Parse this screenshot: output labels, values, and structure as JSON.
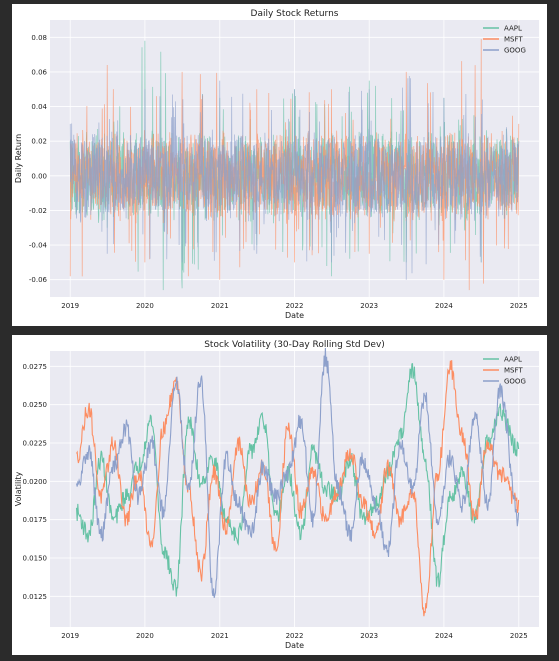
{
  "chart_data": [
    {
      "type": "line",
      "title": "Daily Stock Returns",
      "xlabel": "Date",
      "ylabel": "Daily Return",
      "xlim": [
        "2019-01-01",
        "2025-01-01"
      ],
      "ylim": [
        -0.07,
        0.09
      ],
      "x_ticks": [
        "2019",
        "2020",
        "2021",
        "2022",
        "2023",
        "2024",
        "2025"
      ],
      "y_ticks": [
        "-0.06",
        "-0.04",
        "-0.02",
        "0.00",
        "0.02",
        "0.04",
        "0.06",
        "0.08"
      ],
      "y_tick_values": [
        -0.06,
        -0.04,
        -0.02,
        0.0,
        0.02,
        0.04,
        0.06,
        0.08
      ],
      "legend_position": "top-right",
      "grid": true,
      "series": [
        {
          "name": "AAPL",
          "color": "#66c2a5",
          "x": [
            "2019-01-01",
            "2019-07-01",
            "2020-01-01",
            "2020-07-01",
            "2021-01-01",
            "2021-07-01",
            "2022-01-01",
            "2022-07-01",
            "2023-01-01",
            "2023-07-01",
            "2024-01-01",
            "2024-07-01",
            "2025-01-01"
          ],
          "values": [
            0.02,
            -0.03,
            0.078,
            -0.065,
            0.045,
            -0.04,
            0.05,
            -0.058,
            0.055,
            -0.05,
            0.045,
            -0.05,
            0.02
          ]
        },
        {
          "name": "MSFT",
          "color": "#fc8d62",
          "x": [
            "2019-01-01",
            "2019-07-01",
            "2020-01-01",
            "2020-07-01",
            "2021-01-01",
            "2021-07-01",
            "2022-01-01",
            "2022-07-01",
            "2023-01-01",
            "2023-07-01",
            "2024-01-01",
            "2024-07-01",
            "2025-01-01"
          ],
          "values": [
            -0.058,
            0.064,
            -0.05,
            0.06,
            -0.06,
            0.05,
            -0.05,
            0.05,
            -0.045,
            0.06,
            -0.06,
            0.079,
            0.03
          ]
        },
        {
          "name": "GOOG",
          "color": "#8da0cb",
          "x": [
            "2019-01-01",
            "2019-07-01",
            "2020-01-01",
            "2020-07-01",
            "2021-01-01",
            "2021-07-01",
            "2022-01-01",
            "2022-07-01",
            "2023-01-01",
            "2023-07-01",
            "2024-01-01",
            "2024-07-01",
            "2025-01-01"
          ],
          "values": [
            0.03,
            -0.045,
            0.05,
            -0.05,
            0.055,
            -0.045,
            0.05,
            -0.05,
            0.05,
            -0.06,
            0.045,
            -0.05,
            0.02
          ]
        }
      ]
    },
    {
      "type": "line",
      "title": "Stock Volatility (30-Day Rolling Std Dev)",
      "xlabel": "Date",
      "ylabel": "Volatility",
      "xlim": [
        "2019-01-01",
        "2025-01-01"
      ],
      "ylim": [
        0.0105,
        0.0285
      ],
      "x_ticks": [
        "2019",
        "2020",
        "2021",
        "2022",
        "2023",
        "2024",
        "2025"
      ],
      "y_ticks": [
        "0.0125",
        "0.0150",
        "0.0175",
        "0.0200",
        "0.0225",
        "0.0250",
        "0.0275"
      ],
      "y_tick_values": [
        0.0125,
        0.015,
        0.0175,
        0.02,
        0.0225,
        0.025,
        0.0275
      ],
      "legend_position": "top-right",
      "grid": true,
      "series": [
        {
          "name": "AAPL",
          "color": "#66c2a5",
          "x": [
            "2019-02-01",
            "2019-04-01",
            "2019-06-01",
            "2019-08-01",
            "2019-10-01",
            "2019-12-01",
            "2020-02-01",
            "2020-04-01",
            "2020-06-01",
            "2020-08-01",
            "2020-10-01",
            "2020-12-01",
            "2021-02-01",
            "2021-04-01",
            "2021-06-01",
            "2021-08-01",
            "2021-10-01",
            "2021-12-01",
            "2022-02-01",
            "2022-04-01",
            "2022-06-01",
            "2022-08-01",
            "2022-10-01",
            "2022-12-01",
            "2023-02-01",
            "2023-04-01",
            "2023-06-01",
            "2023-08-01",
            "2023-10-01",
            "2023-12-01",
            "2024-02-01",
            "2024-04-01",
            "2024-06-01",
            "2024-08-01",
            "2024-10-01",
            "2024-12-31"
          ],
          "values": [
            0.018,
            0.0165,
            0.0215,
            0.0175,
            0.019,
            0.021,
            0.024,
            0.0155,
            0.013,
            0.024,
            0.02,
            0.0215,
            0.0175,
            0.0165,
            0.022,
            0.024,
            0.0175,
            0.0205,
            0.0165,
            0.022,
            0.0195,
            0.019,
            0.0215,
            0.0175,
            0.0185,
            0.0205,
            0.023,
            0.0272,
            0.0215,
            0.0135,
            0.019,
            0.0205,
            0.0175,
            0.0225,
            0.0245,
            0.022
          ]
        },
        {
          "name": "MSFT",
          "color": "#fc8d62",
          "x": [
            "2019-02-01",
            "2019-04-01",
            "2019-06-01",
            "2019-08-01",
            "2019-10-01",
            "2019-12-01",
            "2020-02-01",
            "2020-04-01",
            "2020-06-01",
            "2020-08-01",
            "2020-10-01",
            "2020-12-01",
            "2021-02-01",
            "2021-04-01",
            "2021-06-01",
            "2021-08-01",
            "2021-10-01",
            "2021-12-01",
            "2022-02-01",
            "2022-04-01",
            "2022-06-01",
            "2022-08-01",
            "2022-10-01",
            "2022-12-01",
            "2023-02-01",
            "2023-04-01",
            "2023-06-01",
            "2023-08-01",
            "2023-10-01",
            "2023-12-01",
            "2024-02-01",
            "2024-04-01",
            "2024-06-01",
            "2024-08-01",
            "2024-10-01",
            "2024-12-31"
          ],
          "values": [
            0.0215,
            0.0248,
            0.019,
            0.0225,
            0.0175,
            0.0205,
            0.016,
            0.0235,
            0.0265,
            0.0195,
            0.014,
            0.0205,
            0.017,
            0.0225,
            0.0185,
            0.021,
            0.0155,
            0.0235,
            0.018,
            0.0205,
            0.0175,
            0.0195,
            0.022,
            0.0185,
            0.0165,
            0.021,
            0.0175,
            0.0195,
            0.0115,
            0.0205,
            0.0275,
            0.023,
            0.0175,
            0.0225,
            0.0205,
            0.0185
          ]
        },
        {
          "name": "GOOG",
          "color": "#8da0cb",
          "x": [
            "2019-02-01",
            "2019-04-01",
            "2019-06-01",
            "2019-08-01",
            "2019-10-01",
            "2019-12-01",
            "2020-02-01",
            "2020-04-01",
            "2020-06-01",
            "2020-08-01",
            "2020-10-01",
            "2020-12-01",
            "2021-02-01",
            "2021-04-01",
            "2021-06-01",
            "2021-08-01",
            "2021-10-01",
            "2021-12-01",
            "2022-02-01",
            "2022-04-01",
            "2022-06-01",
            "2022-08-01",
            "2022-10-01",
            "2022-12-01",
            "2023-02-01",
            "2023-04-01",
            "2023-06-01",
            "2023-08-01",
            "2023-10-01",
            "2023-12-01",
            "2024-02-01",
            "2024-04-01",
            "2024-06-01",
            "2024-08-01",
            "2024-10-01",
            "2024-12-31"
          ],
          "values": [
            0.0195,
            0.022,
            0.0165,
            0.021,
            0.0235,
            0.019,
            0.0225,
            0.018,
            0.0265,
            0.0195,
            0.0268,
            0.0125,
            0.0215,
            0.0185,
            0.0165,
            0.021,
            0.019,
            0.0205,
            0.024,
            0.0175,
            0.0281,
            0.0195,
            0.0165,
            0.0215,
            0.0185,
            0.0155,
            0.0225,
            0.0195,
            0.0255,
            0.0175,
            0.0215,
            0.0185,
            0.0245,
            0.0185,
            0.026,
            0.0175
          ]
        }
      ]
    }
  ]
}
